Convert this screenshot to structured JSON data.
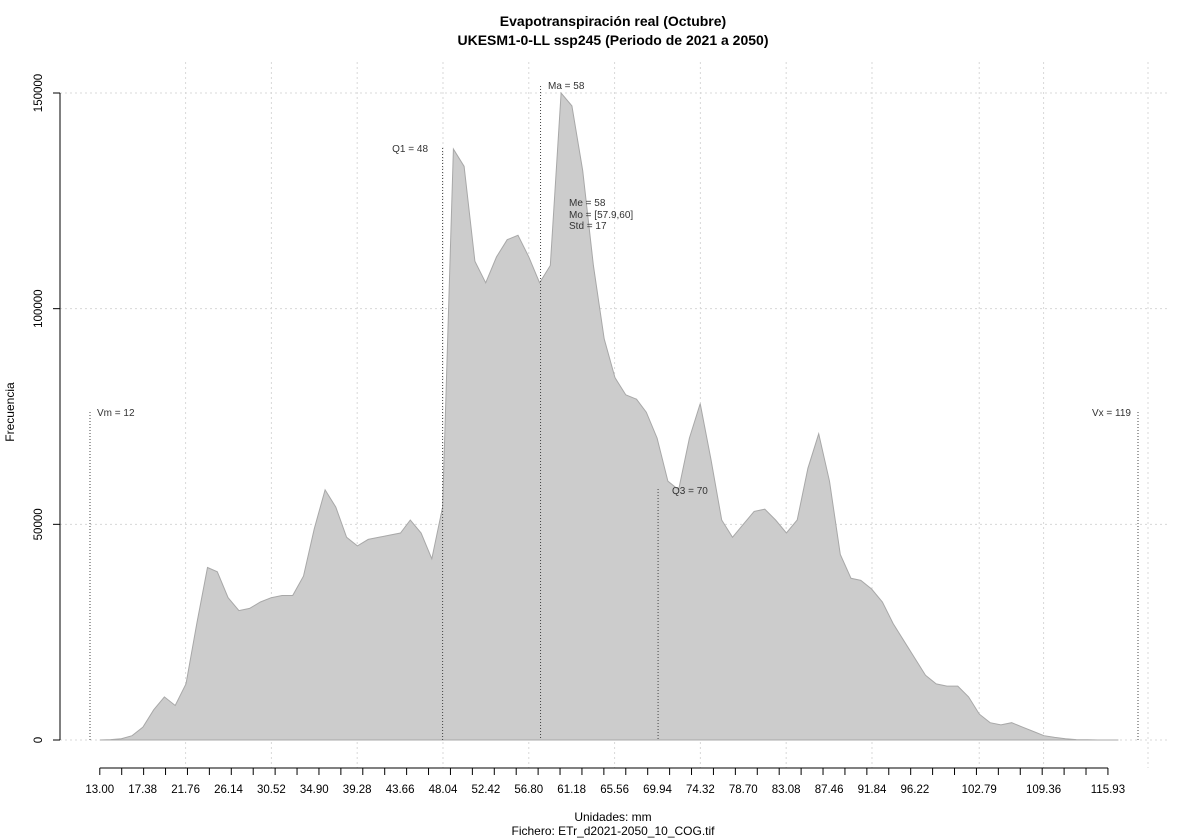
{
  "chart_data": {
    "type": "area",
    "title": "Evapotranspiración real (Octubre)",
    "subtitle": "UKESM1-0-LL ssp245 (Periodo de 2021 a 2050)",
    "xlabel": "Unidades: mm",
    "ylabel": "Frecuencia",
    "footer": "Fichero: ETr_d2021-2050_10_COG.tif",
    "xlim": [
      12,
      119
    ],
    "ylim": [
      0,
      150000
    ],
    "grid": true,
    "x_ticks": [
      "13.00",
      "17.38",
      "21.76",
      "26.14",
      "30.52",
      "34.90",
      "39.28",
      "43.66",
      "48.04",
      "52.42",
      "56.80",
      "61.18",
      "65.56",
      "69.94",
      "74.32",
      "78.70",
      "83.08",
      "87.46",
      "91.84",
      "96.22",
      "102.79",
      "109.36",
      "115.93"
    ],
    "y_ticks": [
      "0",
      "50000",
      "100000",
      "150000"
    ],
    "series": [
      {
        "x": [
          13.0,
          14.1,
          15.2,
          16.3,
          17.4,
          18.5,
          19.6,
          20.7,
          21.8,
          22.9,
          24.0,
          25.0,
          26.1,
          27.2,
          28.3,
          29.4,
          30.5,
          31.6,
          32.7,
          33.8,
          34.9,
          36.0,
          37.1,
          38.2,
          39.3,
          40.4,
          41.5,
          42.6,
          43.7,
          44.7,
          45.8,
          46.9,
          48.0,
          49.1,
          50.2,
          51.3,
          52.4,
          53.5,
          54.6,
          55.7,
          56.8,
          57.9,
          59.0,
          60.1,
          61.2,
          62.3,
          63.4,
          64.5,
          65.6,
          66.7,
          67.8,
          68.8,
          69.9,
          71.0,
          72.1,
          73.2,
          74.3,
          75.4,
          76.5,
          77.6,
          78.7,
          79.8,
          80.9,
          82.0,
          83.1,
          84.2,
          85.3,
          86.4,
          87.5,
          88.6,
          89.7,
          90.7,
          91.8,
          92.9,
          94.0,
          95.1,
          96.2,
          97.3,
          98.4,
          99.5,
          100.6,
          101.7,
          102.8,
          103.9,
          105.0,
          106.1,
          107.2,
          108.3,
          109.4,
          110.5,
          111.6,
          112.7,
          113.8,
          114.9,
          115.9,
          117.0
        ],
        "y": [
          0,
          100,
          300,
          1000,
          3000,
          7000,
          10000,
          8000,
          13000,
          27000,
          40000,
          39000,
          33000,
          30000,
          30500,
          32000,
          33000,
          33500,
          33500,
          38000,
          49000,
          58000,
          54000,
          47000,
          45000,
          46500,
          47000,
          47500,
          48000,
          51000,
          48000,
          42000,
          54000,
          137000,
          133000,
          111000,
          106000,
          112000,
          116000,
          117000,
          112000,
          106000,
          110000,
          150000,
          147000,
          132000,
          110000,
          93000,
          84000,
          80000,
          79000,
          76000,
          70000,
          60000,
          58000,
          70000,
          78000,
          65000,
          51000,
          47000,
          50000,
          53000,
          53500,
          51000,
          48000,
          51000,
          63000,
          71000,
          60000,
          43000,
          37500,
          37000,
          35000,
          32000,
          27000,
          23000,
          19000,
          15000,
          13000,
          12500,
          12500,
          10000,
          6000,
          4000,
          3500,
          4000,
          3000,
          2000,
          1000,
          600,
          300,
          100,
          50,
          0,
          0,
          0
        ]
      }
    ],
    "annotations": {
      "vm": {
        "x": 12,
        "label": "Vm = 12"
      },
      "vx": {
        "x": 119,
        "label": "Vx = 119"
      },
      "q1": {
        "x": 48,
        "label": "Q1 = 48"
      },
      "me": {
        "x": 58,
        "label": "Me = 58"
      },
      "ma": {
        "x": 58,
        "label": "Ma = 58"
      },
      "mo": {
        "label": "Mo = [57.9,60]"
      },
      "std": {
        "label": "Std = 17"
      },
      "q3": {
        "x": 70,
        "label": "Q3 = 70"
      }
    }
  }
}
